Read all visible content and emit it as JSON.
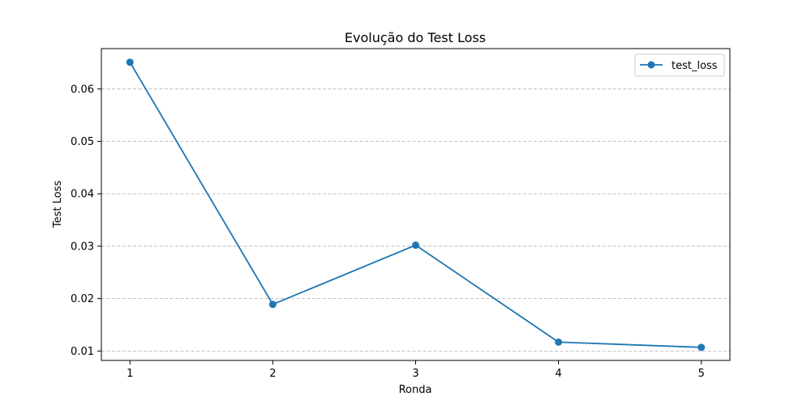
{
  "chart_data": {
    "type": "line",
    "title": "Evolução do Test Loss",
    "xlabel": "Ronda",
    "ylabel": "Test Loss",
    "x": [
      1,
      2,
      3,
      4,
      5
    ],
    "xticks": [
      "1",
      "2",
      "3",
      "4",
      "5"
    ],
    "yticks": [
      "0.01",
      "0.02",
      "0.03",
      "0.04",
      "0.05",
      "0.06"
    ],
    "ytick_values": [
      0.01,
      0.02,
      0.03,
      0.04,
      0.05,
      0.06
    ],
    "xlim": [
      0.8,
      5.2
    ],
    "ylim": [
      0.0082,
      0.0677
    ],
    "grid": "y-dashed",
    "legend_position": "top-right",
    "series": [
      {
        "name": "test_loss",
        "color": "#1f77b4",
        "marker": "circle",
        "values": [
          0.0651,
          0.0189,
          0.0302,
          0.0117,
          0.0107
        ]
      }
    ]
  }
}
